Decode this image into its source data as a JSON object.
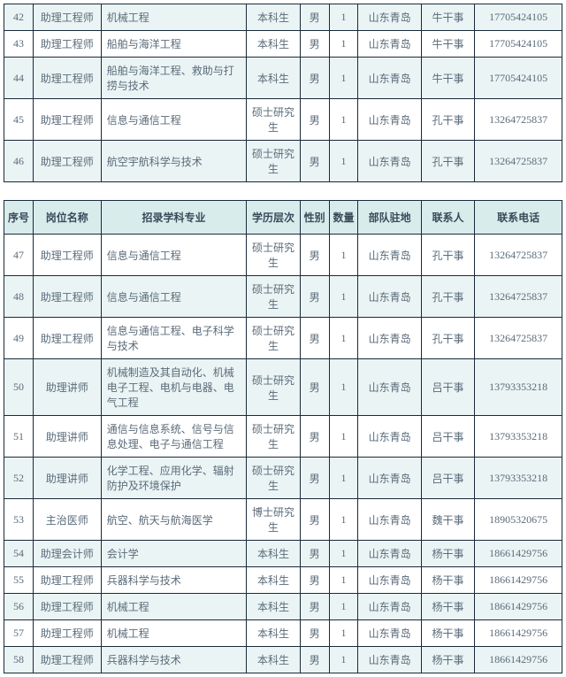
{
  "headers": {
    "idx": "序号",
    "position": "岗位名称",
    "major": "招录学科专业",
    "edu": "学历层次",
    "sex": "性别",
    "qty": "数量",
    "loc": "部队驻地",
    "contact": "联系人",
    "phone": "联系电话"
  },
  "table1": [
    {
      "idx": "42",
      "position": "助理工程师",
      "major": "机械工程",
      "edu": "本科生",
      "sex": "男",
      "qty": "1",
      "loc": "山东青岛",
      "contact": "牛干事",
      "phone": "17705424105"
    },
    {
      "idx": "43",
      "position": "助理工程师",
      "major": "船舶与海洋工程",
      "edu": "本科生",
      "sex": "男",
      "qty": "1",
      "loc": "山东青岛",
      "contact": "牛干事",
      "phone": "17705424105"
    },
    {
      "idx": "44",
      "position": "助理工程师",
      "major": "船舶与海洋工程、救助与打捞与技术",
      "edu": "本科生",
      "sex": "男",
      "qty": "1",
      "loc": "山东青岛",
      "contact": "牛干事",
      "phone": "17705424105"
    },
    {
      "idx": "45",
      "position": "助理工程师",
      "major": "信息与通信工程",
      "edu": "硕士研究生",
      "sex": "男",
      "qty": "1",
      "loc": "山东青岛",
      "contact": "孔干事",
      "phone": "13264725837"
    },
    {
      "idx": "46",
      "position": "助理工程师",
      "major": "航空宇航科学与技术",
      "edu": "硕士研究生",
      "sex": "男",
      "qty": "1",
      "loc": "山东青岛",
      "contact": "孔干事",
      "phone": "13264725837"
    }
  ],
  "table2": [
    {
      "idx": "47",
      "position": "助理工程师",
      "major": "信息与通信工程",
      "edu": "硕士研究生",
      "sex": "男",
      "qty": "1",
      "loc": "山东青岛",
      "contact": "孔干事",
      "phone": "13264725837"
    },
    {
      "idx": "48",
      "position": "助理工程师",
      "major": "信息与通信工程",
      "edu": "硕士研究生",
      "sex": "男",
      "qty": "1",
      "loc": "山东青岛",
      "contact": "孔干事",
      "phone": "13264725837"
    },
    {
      "idx": "49",
      "position": "助理工程师",
      "major": "信息与通信工程、电子科学与技术",
      "edu": "硕士研究生",
      "sex": "男",
      "qty": "1",
      "loc": "山东青岛",
      "contact": "孔干事",
      "phone": "13264725837"
    },
    {
      "idx": "50",
      "position": "助理讲师",
      "major": "机械制造及其自动化、机械电子工程、电机与电器、电气工程",
      "edu": "硕士研究生",
      "sex": "男",
      "qty": "1",
      "loc": "山东青岛",
      "contact": "吕干事",
      "phone": "13793353218"
    },
    {
      "idx": "51",
      "position": "助理讲师",
      "major": "通信与信息系统、信号与信息处理、电子与通信工程",
      "edu": "硕士研究生",
      "sex": "男",
      "qty": "1",
      "loc": "山东青岛",
      "contact": "吕干事",
      "phone": "13793353218"
    },
    {
      "idx": "52",
      "position": "助理讲师",
      "major": "化学工程、应用化学、辐射防护及环境保护",
      "edu": "硕士研究生",
      "sex": "男",
      "qty": "1",
      "loc": "山东青岛",
      "contact": "吕干事",
      "phone": "13793353218"
    },
    {
      "idx": "53",
      "position": "主治医师",
      "major": "航空、航天与航海医学",
      "edu": "博士研究生",
      "sex": "男",
      "qty": "1",
      "loc": "山东青岛",
      "contact": "魏干事",
      "phone": "18905320675"
    },
    {
      "idx": "54",
      "position": "助理会计师",
      "major": "会计学",
      "edu": "本科生",
      "sex": "男",
      "qty": "1",
      "loc": "山东青岛",
      "contact": "杨干事",
      "phone": "18661429756"
    },
    {
      "idx": "55",
      "position": "助理工程师",
      "major": "兵器科学与技术",
      "edu": "本科生",
      "sex": "男",
      "qty": "1",
      "loc": "山东青岛",
      "contact": "杨干事",
      "phone": "18661429756"
    },
    {
      "idx": "56",
      "position": "助理工程师",
      "major": "机械工程",
      "edu": "本科生",
      "sex": "男",
      "qty": "1",
      "loc": "山东青岛",
      "contact": "杨干事",
      "phone": "18661429756"
    },
    {
      "idx": "57",
      "position": "助理工程师",
      "major": "机械工程",
      "edu": "本科生",
      "sex": "男",
      "qty": "1",
      "loc": "山东青岛",
      "contact": "杨干事",
      "phone": "18661429756"
    },
    {
      "idx": "58",
      "position": "助理工程师",
      "major": "兵器科学与技术",
      "edu": "本科生",
      "sex": "男",
      "qty": "1",
      "loc": "山东青岛",
      "contact": "杨干事",
      "phone": "18661429756"
    }
  ]
}
